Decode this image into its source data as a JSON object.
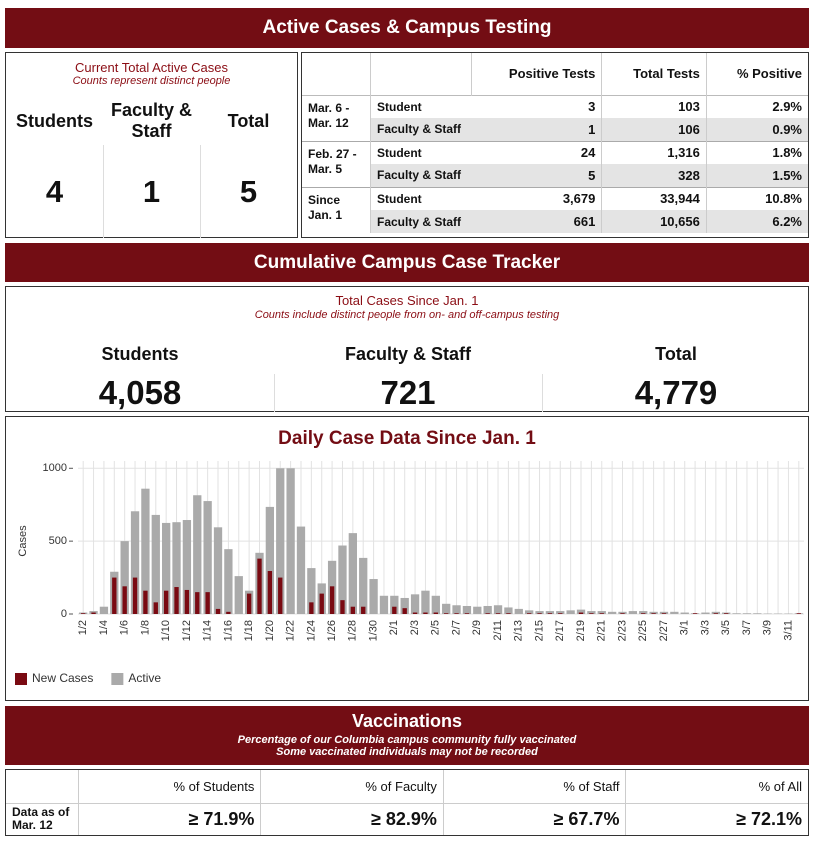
{
  "header": {
    "title": "Active Cases & Campus Testing"
  },
  "active_cases": {
    "title": "Current Total Active Cases",
    "subtitle": "Counts represent distinct people",
    "columns": [
      "Students",
      "Faculty & Staff",
      "Total"
    ],
    "values": [
      4,
      1,
      5
    ]
  },
  "testing": {
    "columns": [
      "Positive Tests",
      "Total Tests",
      "% Positive"
    ],
    "periods": [
      {
        "label": "Mar. 6 - Mar. 12",
        "rows": [
          {
            "group": "Student",
            "cells": [
              "3",
              "103",
              "2.9%"
            ]
          },
          {
            "group": "Faculty & Staff",
            "cells": [
              "1",
              "106",
              "0.9%"
            ]
          }
        ]
      },
      {
        "label": "Feb. 27 - Mar. 5",
        "rows": [
          {
            "group": "Student",
            "cells": [
              "24",
              "1,316",
              "1.8%"
            ]
          },
          {
            "group": "Faculty & Staff",
            "cells": [
              "5",
              "328",
              "1.5%"
            ]
          }
        ]
      },
      {
        "label": "Since Jan. 1",
        "rows": [
          {
            "group": "Student",
            "cells": [
              "3,679",
              "33,944",
              "10.8%"
            ]
          },
          {
            "group": "Faculty & Staff",
            "cells": [
              "661",
              "10,656",
              "6.2%"
            ]
          }
        ]
      }
    ]
  },
  "cumulative": {
    "banner": "Cumulative Campus Case Tracker",
    "title": "Total Cases Since Jan. 1",
    "subtitle": "Counts include distinct people from on- and off-campus testing",
    "columns": [
      "Students",
      "Faculty & Staff",
      "Total"
    ],
    "values": [
      "4,058",
      "721",
      "4,779"
    ]
  },
  "chart_data": {
    "type": "bar",
    "title": "Daily Case Data Since Jan. 1",
    "y_label": "Cases",
    "categories": [
      "1/2",
      null,
      "1/4",
      null,
      "1/6",
      null,
      "1/8",
      null,
      "1/10",
      null,
      "1/12",
      null,
      "1/14",
      null,
      "1/16",
      null,
      "1/18",
      null,
      "1/20",
      null,
      "1/22",
      null,
      "1/24",
      null,
      "1/26",
      null,
      "1/28",
      null,
      "1/30",
      null,
      "2/1",
      null,
      "2/3",
      null,
      "2/5",
      null,
      "2/7",
      null,
      "2/9",
      null,
      "2/11",
      null,
      "2/13",
      null,
      "2/15",
      null,
      "2/17",
      null,
      "2/19",
      null,
      "2/21",
      null,
      "2/23",
      null,
      "2/25",
      null,
      "2/27",
      null,
      "3/1",
      null,
      "3/3",
      null,
      "3/5",
      null,
      "3/7",
      null,
      "3/9",
      null,
      "3/11",
      null
    ],
    "series": [
      {
        "name": "New Cases",
        "color": "#7a0a12",
        "values": [
          5,
          10,
          0,
          250,
          190,
          250,
          160,
          80,
          160,
          185,
          165,
          150,
          150,
          35,
          15,
          0,
          140,
          380,
          295,
          250,
          0,
          0,
          80,
          140,
          190,
          95,
          50,
          50,
          0,
          0,
          50,
          40,
          10,
          10,
          10,
          5,
          5,
          5,
          0,
          5,
          5,
          5,
          0,
          5,
          5,
          5,
          5,
          0,
          10,
          5,
          5,
          0,
          5,
          0,
          5,
          5,
          5,
          0,
          0,
          5,
          0,
          5,
          5,
          0,
          0,
          0,
          0,
          0,
          0,
          5
        ]
      },
      {
        "name": "Active",
        "color": "#aaaaaa",
        "values": [
          10,
          20,
          50,
          290,
          500,
          705,
          860,
          680,
          625,
          630,
          645,
          815,
          775,
          595,
          445,
          260,
          160,
          420,
          735,
          1000,
          1000,
          600,
          315,
          210,
          365,
          470,
          555,
          385,
          240,
          125,
          125,
          110,
          135,
          160,
          125,
          70,
          60,
          55,
          50,
          55,
          60,
          45,
          35,
          25,
          20,
          20,
          20,
          25,
          30,
          20,
          20,
          15,
          15,
          20,
          20,
          15,
          15,
          15,
          10,
          5,
          10,
          15,
          10,
          5,
          5,
          5,
          3,
          3,
          3,
          5
        ]
      }
    ],
    "ylim": [
      0,
      1050
    ],
    "yticks": [
      0,
      500,
      1000
    ],
    "grid": true,
    "legend": "bottom-left"
  },
  "vaccinations": {
    "title": "Vaccinations",
    "subtitle": [
      "Percentage of our Columbia campus community fully vaccinated",
      "Some vaccinated individuals may not be recorded"
    ],
    "columns": [
      "% of Students",
      "% of Faculty",
      "% of Staff",
      "% of All"
    ],
    "row_label": "Data as of Mar. 12",
    "values": [
      "≥ 71.9%",
      "≥ 82.9%",
      "≥ 67.7%",
      "≥ 72.1%"
    ]
  }
}
